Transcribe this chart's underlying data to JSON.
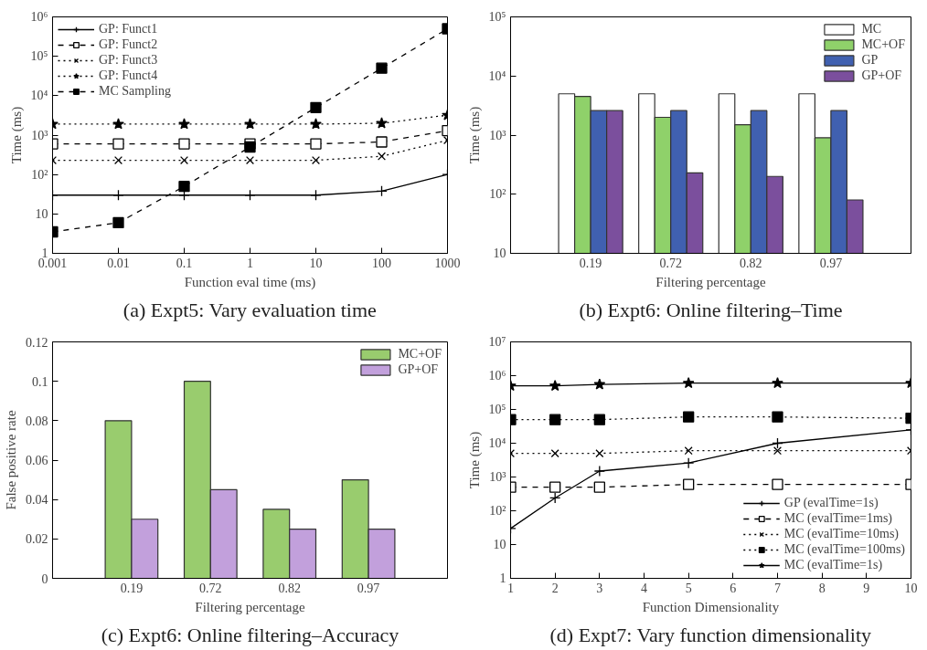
{
  "chart_data": [
    {
      "type": "line",
      "title": "(a) Expt5: Vary evaluation time",
      "xlabel": "Function eval time (ms)",
      "ylabel": "Time (ms)",
      "log": "xy",
      "x": [
        0.001,
        0.01,
        0.1,
        1,
        10,
        100,
        1000
      ],
      "xlim": [
        0.001,
        1000
      ],
      "xticks": [
        0.001,
        0.01,
        0.1,
        1,
        10,
        100,
        1000
      ],
      "ylim": [
        1,
        1000000
      ],
      "yticks": [
        1,
        10,
        {
          "value": 100,
          "label": "10²"
        },
        {
          "value": 1000,
          "label": "10³"
        },
        {
          "value": 10000,
          "label": "10⁴"
        },
        {
          "value": 100000,
          "label": "10⁵"
        },
        {
          "value": 1000000,
          "label": "10⁶"
        }
      ],
      "grid": false,
      "legend": "top left",
      "series": [
        {
          "name": "GP: Funct1",
          "color": "#000000",
          "marker": "cross",
          "line_style": "solid",
          "values": [
            30,
            30,
            30,
            30,
            30,
            38,
            100
          ]
        },
        {
          "name": "GP: Funct2",
          "color": "#000000",
          "marker": "square",
          "line_style": "dashed",
          "values": [
            600,
            600,
            600,
            600,
            600,
            670,
            1300
          ]
        },
        {
          "name": "GP: Funct3",
          "color": "#000000",
          "marker": "x",
          "line_style": "dotted",
          "values": [
            230,
            230,
            230,
            230,
            230,
            290,
            740
          ]
        },
        {
          "name": "GP: Funct4",
          "color": "#000000",
          "marker": "star",
          "line_style": "dotted",
          "values": [
            1900,
            1900,
            1900,
            1900,
            1900,
            2000,
            3200
          ]
        },
        {
          "name": "MC Sampling",
          "color": "#000000",
          "colors": [
            "#000000",
            "#000000",
            "#000000",
            "#000000",
            "#000000",
            "#000000",
            "#000000"
          ],
          "marker": "square",
          "line_style": "dashed",
          "values": [
            3.5,
            6,
            50,
            500,
            5000,
            50000,
            500000
          ]
        }
      ]
    },
    {
      "type": "bar",
      "title": "(b) Expt6: Online filtering–Time",
      "xlabel": "Filtering percentage",
      "ylabel": "Time (ms)",
      "log": "y",
      "categories": [
        "0.19",
        "0.72",
        "0.82",
        "0.97"
      ],
      "ylim": [
        10,
        100000
      ],
      "yticks": [
        10,
        {
          "value": 100,
          "label": "10²"
        },
        {
          "value": 1000,
          "label": "10³"
        },
        {
          "value": 10000,
          "label": "10⁴"
        },
        {
          "value": 100000,
          "label": "10⁵"
        }
      ],
      "grid": false,
      "legend": "top right",
      "series": [
        {
          "name": "MC",
          "color": "#ffffff",
          "values": [
            5000,
            5000,
            5000,
            5000
          ]
        },
        {
          "name": "MC+OF",
          "color": "#8fd16a",
          "values": [
            4500,
            2000,
            1500,
            900
          ]
        },
        {
          "name": "GP",
          "color": "#4060b0",
          "values": [
            2600,
            2600,
            2600,
            2600
          ]
        },
        {
          "name": "GP+OF",
          "color": "#7b4f9d",
          "values": [
            2600,
            230,
            200,
            80
          ]
        }
      ]
    },
    {
      "type": "bar",
      "title": "(c) Expt6: Online filtering–Accuracy",
      "xlabel": "Filtering percentage",
      "ylabel": "False positive rate",
      "categories": [
        "0.19",
        "0.72",
        "0.82",
        "0.97"
      ],
      "ylim": [
        0,
        0.12
      ],
      "yticks": [
        0,
        0.02,
        0.04,
        0.06,
        0.08,
        0.1,
        0.12
      ],
      "grid": false,
      "legend": "top right",
      "series": [
        {
          "name": "MC+OF",
          "color": "#99cc6e",
          "values": [
            0.08,
            0.1,
            0.035,
            0.05
          ]
        },
        {
          "name": "GP+OF",
          "color": "#c2a0dc",
          "values": [
            0.03,
            0.045,
            0.025,
            0.025
          ]
        }
      ]
    },
    {
      "type": "line",
      "title": "(d) Expt7: Vary function dimensionality",
      "xlabel": "Function Dimensionality",
      "ylabel": "Time (ms)",
      "log": "y",
      "x": [
        1,
        2,
        3,
        5,
        7,
        10
      ],
      "xlim": [
        1,
        10
      ],
      "xticks": [
        1,
        2,
        3,
        4,
        5,
        6,
        7,
        8,
        9,
        10
      ],
      "ylim": [
        1,
        10000000
      ],
      "yticks": [
        1,
        10,
        {
          "value": 100,
          "label": "10²"
        },
        {
          "value": 1000,
          "label": "10³"
        },
        {
          "value": 10000,
          "label": "10⁴"
        },
        {
          "value": 100000,
          "label": "10⁵"
        },
        {
          "value": 1000000,
          "label": "10⁶"
        },
        {
          "value": 10000000,
          "label": "10⁷"
        }
      ],
      "grid": false,
      "legend": "bottom right",
      "series": [
        {
          "name": "GP (evalTime=1s)",
          "color": "#000000",
          "marker": "cross",
          "line_style": "solid",
          "values": [
            30,
            240,
            1500,
            2600,
            10000,
            25000
          ]
        },
        {
          "name": "MC (evalTime=1ms)",
          "color": "#000000",
          "marker": "square",
          "line_style": "dashed",
          "values": [
            500,
            500,
            500,
            600,
            600,
            600
          ]
        },
        {
          "name": "MC (evalTime=10ms)",
          "color": "#000000",
          "marker": "x",
          "line_style": "dotted",
          "values": [
            5000,
            5000,
            5000,
            6000,
            6000,
            6000
          ]
        },
        {
          "name": "MC (evalTime=100ms)",
          "color": "#000000",
          "colors": [
            "#000000",
            "#000000",
            "#000000",
            "#000000",
            "#000000",
            "#000000"
          ],
          "marker": "square",
          "line_style": "dotted",
          "values": [
            50000,
            50000,
            50000,
            60000,
            60000,
            55000
          ]
        },
        {
          "name": "MC (evalTime=1s)",
          "color": "#000000",
          "marker": "star",
          "line_style": "solid",
          "values": [
            500000,
            500000,
            550000,
            600000,
            600000,
            600000
          ]
        }
      ]
    }
  ]
}
